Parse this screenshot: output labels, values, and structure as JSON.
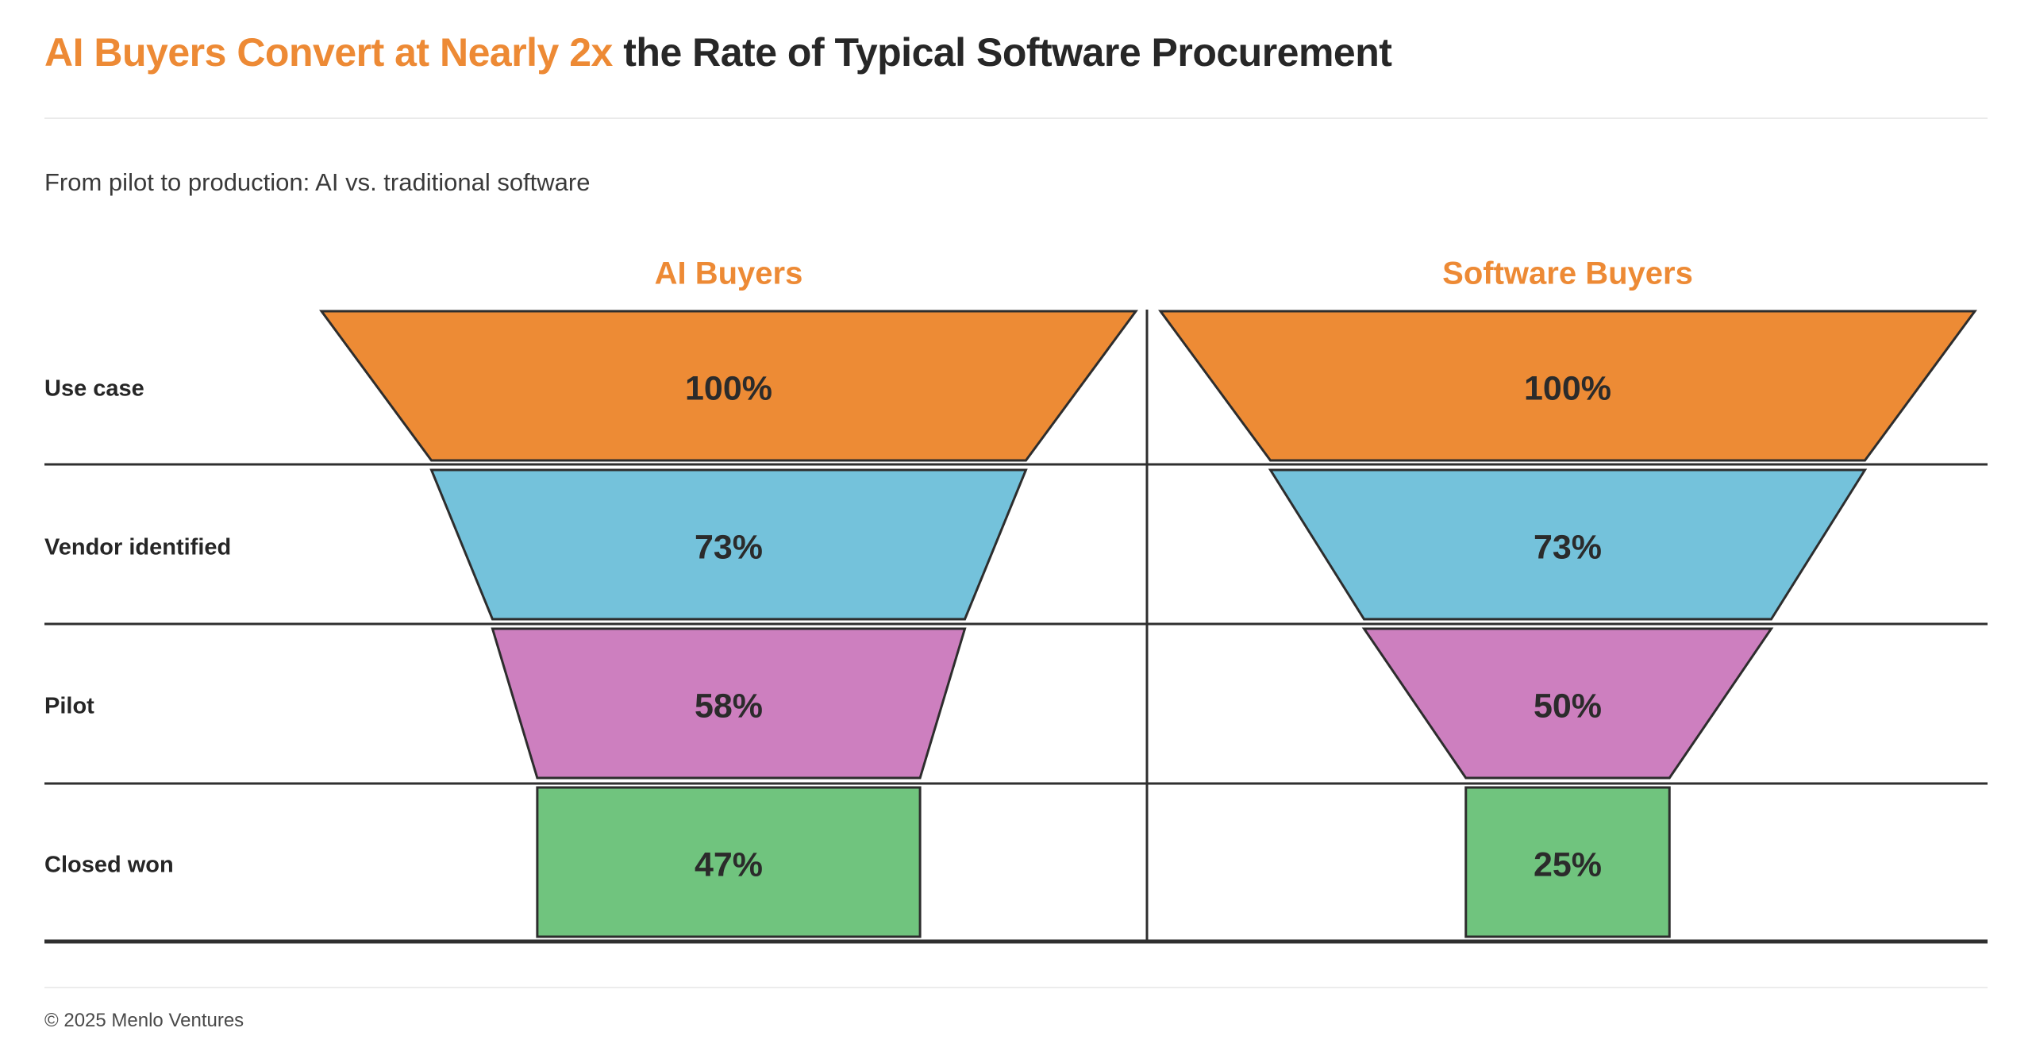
{
  "header": {
    "title_accent": "AI Buyers Convert at Nearly 2x",
    "title_rest": " the Rate of Typical Software Procurement",
    "subtitle": "From pilot to production: AI vs. traditional software"
  },
  "footer": {
    "copyright": "© 2025 Menlo Ventures"
  },
  "colors": {
    "accent_orange": "#ED8A35",
    "title_text": "#272727",
    "divider_dark": "#2F2F2F",
    "divider_light": "#EAEAEA",
    "segment_stroke": "#2D2D2D",
    "value_text": "#2B2B2B"
  },
  "chart_data": {
    "type": "funnel",
    "title": "AI Buyers Convert at Nearly 2x the Rate of Typical Software Procurement",
    "subtitle": "From pilot to production: AI vs. traditional software",
    "stages": [
      "Use case",
      "Vendor identified",
      "Pilot",
      "Closed won"
    ],
    "series": [
      {
        "name": "AI Buyers",
        "values": [
          100,
          73,
          58,
          47
        ],
        "labels": [
          "100%",
          "73%",
          "58%",
          "47%"
        ]
      },
      {
        "name": "Software Buyers",
        "values": [
          100,
          73,
          50,
          25
        ],
        "labels": [
          "100%",
          "73%",
          "50%",
          "25%"
        ]
      }
    ],
    "stage_colors": [
      "#ED8B35",
      "#74C2DB",
      "#CD7FBF",
      "#70C47E"
    ],
    "layout_hints": {
      "orientation": "two mirrored funnels side by side, shared stage rows",
      "stage_row_labels_position": "left",
      "value_label_format": "percent, centered in segment",
      "grid": "horizontal dark separator line under each stage row, vertical divider between funnels",
      "legend": "none"
    }
  }
}
